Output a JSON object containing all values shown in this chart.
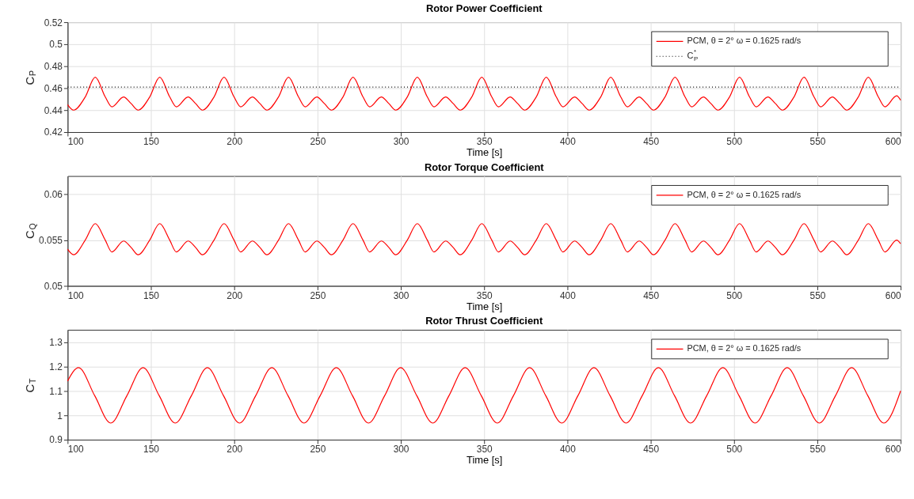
{
  "chart_data": [
    {
      "type": "line",
      "title": "Rotor Power Coefficient",
      "xlabel": "Time [s]",
      "ylabel": "C$_{P}$",
      "xlim": [
        100,
        600
      ],
      "xticks": [
        100,
        150,
        200,
        250,
        300,
        350,
        400,
        450,
        500,
        550,
        600
      ],
      "ylim": [
        0.42,
        0.52
      ],
      "yticks": [
        0.42,
        0.44,
        0.46,
        0.48,
        0.5,
        0.52
      ],
      "grid": true,
      "legend": "top right",
      "series": [
        {
          "name": "PCM, θ = 2°  ω = 0.1625 rad/s",
          "color": "#ff0000",
          "line_style": "solid",
          "x": [
            100,
            103.6,
            110.6,
            116.6,
            122.6,
            126.6,
            133.6,
            138.1,
            142.3,
            149.3,
            155.3,
            161.3,
            165.3,
            172.3,
            176.8,
            180.9,
            187.9,
            193.9,
            199.9,
            203.9,
            210.9,
            215.4,
            219.6,
            226.6,
            232.6,
            238.6,
            242.6,
            249.6,
            254.1,
            258.3,
            265.3,
            271.3,
            277.3,
            281.3,
            288.3,
            292.8,
            296.9,
            303.9,
            309.9,
            315.9,
            319.9,
            326.9,
            331.4,
            335.6,
            342.6,
            348.6,
            354.6,
            358.6,
            365.6,
            370.1,
            374.3,
            381.3,
            387.3,
            393.3,
            397.3,
            404.3,
            408.8,
            413.0,
            420.0,
            426.0,
            432.0,
            436.0,
            443.0,
            447.5,
            451.6,
            458.6,
            464.6,
            470.6,
            474.6,
            481.6,
            486.1,
            490.3,
            497.3,
            503.3,
            509.3,
            513.3,
            520.3,
            524.8,
            529.0,
            536.0,
            542.0,
            548.0,
            552.0,
            559.0,
            563.5,
            567.6,
            574.6,
            580.6,
            586.6,
            590.6,
            597.6,
            600
          ],
          "values": [
            0.445,
            0.44,
            0.452,
            0.47,
            0.452,
            0.443,
            0.452,
            0.446,
            0.44,
            0.452,
            0.47,
            0.452,
            0.443,
            0.452,
            0.446,
            0.44,
            0.452,
            0.47,
            0.452,
            0.443,
            0.452,
            0.446,
            0.44,
            0.452,
            0.47,
            0.452,
            0.443,
            0.452,
            0.446,
            0.44,
            0.452,
            0.47,
            0.452,
            0.443,
            0.452,
            0.446,
            0.44,
            0.452,
            0.47,
            0.452,
            0.443,
            0.452,
            0.446,
            0.44,
            0.452,
            0.47,
            0.452,
            0.443,
            0.452,
            0.446,
            0.44,
            0.452,
            0.47,
            0.452,
            0.443,
            0.452,
            0.446,
            0.44,
            0.452,
            0.47,
            0.452,
            0.443,
            0.452,
            0.446,
            0.44,
            0.452,
            0.47,
            0.452,
            0.443,
            0.452,
            0.446,
            0.44,
            0.452,
            0.47,
            0.452,
            0.443,
            0.452,
            0.446,
            0.44,
            0.452,
            0.47,
            0.452,
            0.443,
            0.452,
            0.446,
            0.44,
            0.452,
            0.47,
            0.452,
            0.443,
            0.453,
            0.449
          ]
        },
        {
          "name": "C$_{P}$$^{*}$",
          "color": "#000000",
          "line_style": "dotted",
          "x": [
            100,
            600
          ],
          "values": [
            0.461,
            0.461
          ]
        }
      ]
    },
    {
      "type": "line",
      "title": "Rotor Torque Coefficient",
      "xlabel": "Time [s]",
      "ylabel": "C$_{Q}$",
      "xlim": [
        100,
        600
      ],
      "xticks": [
        100,
        150,
        200,
        250,
        300,
        350,
        400,
        450,
        500,
        550,
        600
      ],
      "ylim": [
        0.05,
        0.062
      ],
      "yticks": [
        0.05,
        0.055,
        0.06
      ],
      "grid": true,
      "legend": "top right",
      "series": [
        {
          "name": "PCM, θ = 2°  ω = 0.1625 rad/s",
          "color": "#ff0000",
          "line_style": "solid",
          "x": [
            100,
            103.6,
            110.6,
            116.6,
            122.6,
            126.6,
            133.6,
            138.1,
            142.3,
            149.3,
            155.3,
            161.3,
            165.3,
            172.3,
            176.8,
            180.9,
            187.9,
            193.9,
            199.9,
            203.9,
            210.9,
            215.4,
            219.6,
            226.6,
            232.6,
            238.6,
            242.6,
            249.6,
            254.1,
            258.3,
            265.3,
            271.3,
            277.3,
            281.3,
            288.3,
            292.8,
            296.9,
            303.9,
            309.9,
            315.9,
            319.9,
            326.9,
            331.4,
            335.6,
            342.6,
            348.6,
            354.6,
            358.6,
            365.6,
            370.1,
            374.3,
            381.3,
            387.3,
            393.3,
            397.3,
            404.3,
            408.8,
            413.0,
            420.0,
            426.0,
            432.0,
            436.0,
            443.0,
            447.5,
            451.6,
            458.6,
            464.6,
            470.6,
            474.6,
            481.6,
            486.1,
            490.3,
            497.3,
            503.3,
            509.3,
            513.3,
            520.3,
            524.8,
            529.0,
            536.0,
            542.0,
            548.0,
            552.0,
            559.0,
            563.5,
            567.6,
            574.6,
            580.6,
            586.6,
            590.6,
            597.6,
            600
          ],
          "values": [
            0.054,
            0.0534,
            0.055,
            0.0568,
            0.055,
            0.0537,
            0.0549,
            0.0542,
            0.0534,
            0.055,
            0.0568,
            0.055,
            0.0537,
            0.0549,
            0.0542,
            0.0534,
            0.055,
            0.0568,
            0.055,
            0.0537,
            0.0549,
            0.0542,
            0.0534,
            0.055,
            0.0568,
            0.055,
            0.0537,
            0.0549,
            0.0542,
            0.0534,
            0.055,
            0.0568,
            0.055,
            0.0537,
            0.0549,
            0.0542,
            0.0534,
            0.055,
            0.0568,
            0.055,
            0.0537,
            0.0549,
            0.0542,
            0.0534,
            0.055,
            0.0568,
            0.055,
            0.0537,
            0.0549,
            0.0542,
            0.0534,
            0.055,
            0.0568,
            0.055,
            0.0537,
            0.0549,
            0.0542,
            0.0534,
            0.055,
            0.0568,
            0.055,
            0.0537,
            0.0549,
            0.0542,
            0.0534,
            0.055,
            0.0568,
            0.055,
            0.0537,
            0.0549,
            0.0542,
            0.0534,
            0.055,
            0.0568,
            0.055,
            0.0537,
            0.0549,
            0.0542,
            0.0534,
            0.055,
            0.0568,
            0.055,
            0.0537,
            0.0549,
            0.0542,
            0.0534,
            0.055,
            0.0568,
            0.055,
            0.0537,
            0.055,
            0.0546
          ]
        }
      ]
    },
    {
      "type": "line",
      "title": "Rotor Thrust Coefficient",
      "xlabel": "Time [s]",
      "ylabel": "C$_{T}$",
      "xlim": [
        100,
        600
      ],
      "xticks": [
        100,
        150,
        200,
        250,
        300,
        350,
        400,
        450,
        500,
        550,
        600
      ],
      "ylim": [
        0.9,
        1.35
      ],
      "yticks": [
        0.9,
        1,
        1.1,
        1.2,
        1.3
      ],
      "grid": true,
      "legend": "top right",
      "series": [
        {
          "name": "PCM, θ = 2°  ω = 0.1625 rad/s",
          "color": "#ff0000",
          "line_style": "solid",
          "x": [
            100,
            106.6,
            116.3,
            125.9,
            135.6,
            145.3,
            155.0,
            164.6,
            174.3,
            183.9,
            193.6,
            203.2,
            212.9,
            222.6,
            232.3,
            241.9,
            251.6,
            261.3,
            271.0,
            280.6,
            290.3,
            299.9,
            309.6,
            319.2,
            328.9,
            338.6,
            348.3,
            357.9,
            367.6,
            377.3,
            387.0,
            396.6,
            406.3,
            415.9,
            425.6,
            435.2,
            444.9,
            454.6,
            464.3,
            473.9,
            483.6,
            493.3,
            503.0,
            512.6,
            522.3,
            531.9,
            541.6,
            551.2,
            560.9,
            570.6,
            580.3,
            589.9,
            600
          ],
          "values": [
            1.14,
            1.195,
            1.08,
            0.968,
            1.08,
            1.195,
            1.08,
            0.968,
            1.08,
            1.195,
            1.08,
            0.968,
            1.08,
            1.195,
            1.08,
            0.968,
            1.08,
            1.195,
            1.08,
            0.968,
            1.08,
            1.195,
            1.08,
            0.968,
            1.08,
            1.195,
            1.08,
            0.968,
            1.08,
            1.195,
            1.08,
            0.968,
            1.08,
            1.195,
            1.08,
            0.968,
            1.08,
            1.195,
            1.08,
            0.968,
            1.08,
            1.195,
            1.08,
            0.968,
            1.08,
            1.195,
            1.08,
            0.968,
            1.08,
            1.195,
            1.08,
            0.968,
            1.1
          ]
        }
      ]
    }
  ]
}
